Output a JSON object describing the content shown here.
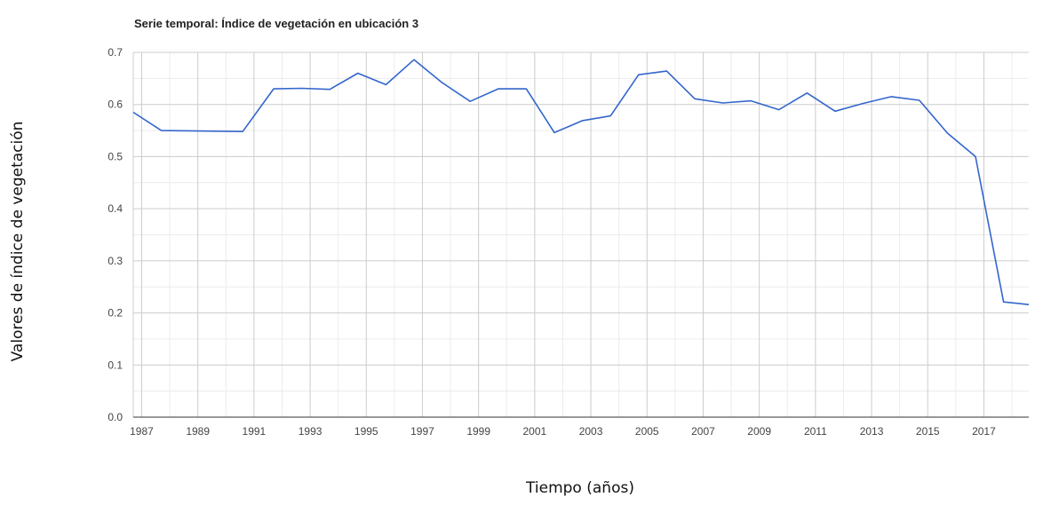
{
  "chart_data": {
    "type": "line",
    "title": "Serie temporal: Índice de vegetación en ubicación 3",
    "xlabel": "Tiempo (años)",
    "ylabel": "Valores de índice de vegetación",
    "xlim": [
      1986.7,
      2018.6
    ],
    "ylim": [
      0,
      0.7
    ],
    "x_ticks": [
      "1987",
      "1989",
      "1991",
      "1993",
      "1995",
      "1997",
      "1999",
      "2001",
      "2003",
      "2005",
      "2007",
      "2009",
      "2011",
      "2013",
      "2015",
      "2017"
    ],
    "y_ticks": [
      "0.0",
      "0.1",
      "0.2",
      "0.3",
      "0.4",
      "0.5",
      "0.6",
      "0.7"
    ],
    "grid": true,
    "series": [
      {
        "color": "#3366cc",
        "x": [
          1986.7,
          1987.7,
          1990.6,
          1991.7,
          1992.7,
          1993.7,
          1994.7,
          1995.7,
          1996.7,
          1997.7,
          1998.7,
          1999.7,
          2000.7,
          2001.7,
          2002.7,
          2003.7,
          2004.7,
          2005.7,
          2006.7,
          2007.7,
          2008.7,
          2009.7,
          2010.7,
          2011.7,
          2012.7,
          2013.7,
          2014.7,
          2015.7,
          2016.7,
          2017.7,
          2018.6
        ],
        "y": [
          0.585,
          0.55,
          0.548,
          0.63,
          0.631,
          0.629,
          0.66,
          0.638,
          0.686,
          0.642,
          0.606,
          0.63,
          0.63,
          0.546,
          0.569,
          0.578,
          0.657,
          0.664,
          0.611,
          0.603,
          0.607,
          0.59,
          0.622,
          0.587,
          0.602,
          0.615,
          0.608,
          0.545,
          0.5,
          0.221,
          0.216
        ]
      }
    ]
  }
}
